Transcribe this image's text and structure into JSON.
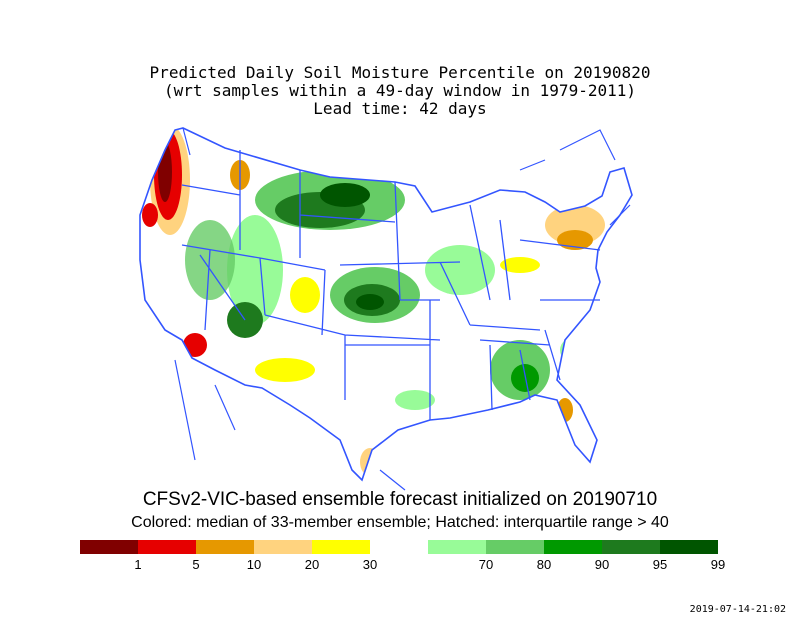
{
  "title": {
    "line1": "Predicted Daily Soil Moisture Percentile on 20190820",
    "line2": "(wrt samples within a 49-day window in 1979-2011)",
    "line3": "Lead time: 42 days"
  },
  "caption": {
    "line1": "CFSv2-VIC-based ensemble forecast initialized on 20190710",
    "line2": "Colored: median of 33-member ensemble; Hatched: interquartile range > 40"
  },
  "legend": {
    "bins": [
      {
        "color": "#800000"
      },
      {
        "color": "#e60000"
      },
      {
        "color": "#e69800"
      },
      {
        "color": "#ffd37f"
      },
      {
        "color": "#ffff00"
      },
      {
        "color": "#ffffff"
      },
      {
        "color": "#98fb98"
      },
      {
        "color": "#66cc66"
      },
      {
        "color": "#009900"
      },
      {
        "color": "#1e7a1e"
      },
      {
        "color": "#005500"
      }
    ],
    "ticks": [
      "1",
      "5",
      "10",
      "20",
      "30",
      "70",
      "80",
      "90",
      "95",
      "99"
    ]
  },
  "timestamp": "2019-07-14-21:02",
  "colors": {
    "boundary": "#3355ff",
    "background": "#ffffff"
  }
}
